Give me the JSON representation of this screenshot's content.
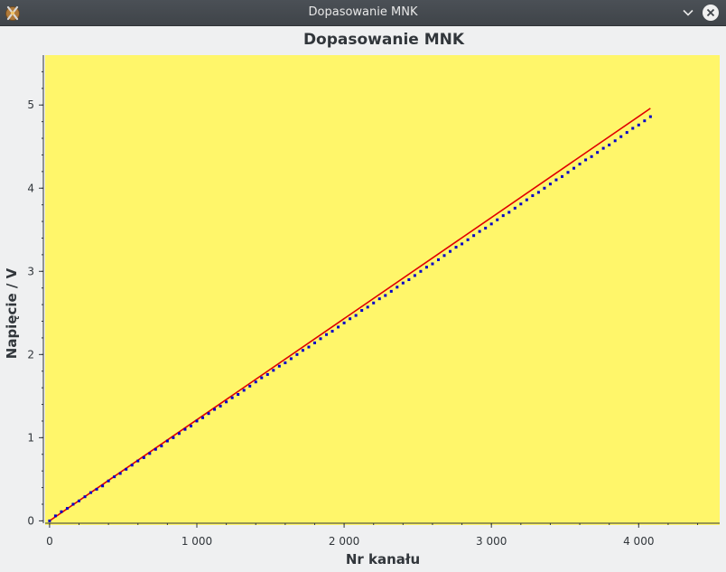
{
  "window": {
    "title": "Dopasowanie MNK"
  },
  "colors": {
    "plot_background": "#fff66a",
    "data_points": "#0000c8",
    "fit_line": "#e00000",
    "axis": "#31363b"
  },
  "icons": {
    "app": "app-icon",
    "minimize": "chevron-down-icon",
    "close": "close-icon"
  },
  "chart_data": {
    "type": "scatter",
    "title": "Dopasowanie MNK",
    "xlabel": "Nr kanału",
    "ylabel": "Napięcie / V",
    "xlim": [
      -30,
      4550
    ],
    "ylim": [
      -0.05,
      5.6
    ],
    "x_ticks": [
      0,
      1000,
      2000,
      3000,
      4000
    ],
    "x_tick_labels": [
      "0",
      "1 000",
      "2 000",
      "3 000",
      "4 000"
    ],
    "y_ticks": [
      0,
      1,
      2,
      3,
      4,
      5
    ],
    "y_tick_labels": [
      "0",
      "1",
      "2",
      "3",
      "4",
      "5"
    ],
    "grid": false,
    "series": [
      {
        "kind": "points",
        "x": [
          0,
          40,
          80,
          120,
          160,
          200,
          240,
          280,
          320,
          360,
          400,
          440,
          480,
          520,
          560,
          600,
          640,
          680,
          720,
          760,
          800,
          840,
          880,
          920,
          960,
          1000,
          1040,
          1080,
          1120,
          1160,
          1200,
          1240,
          1280,
          1320,
          1360,
          1400,
          1440,
          1480,
          1520,
          1560,
          1600,
          1640,
          1680,
          1720,
          1760,
          1800,
          1840,
          1880,
          1920,
          1960,
          2000,
          2040,
          2080,
          2120,
          2160,
          2200,
          2240,
          2280,
          2320,
          2360,
          2400,
          2440,
          2480,
          2520,
          2560,
          2600,
          2640,
          2680,
          2720,
          2760,
          2800,
          2840,
          2880,
          2920,
          2960,
          3000,
          3040,
          3080,
          3120,
          3160,
          3200,
          3240,
          3280,
          3320,
          3360,
          3400,
          3440,
          3480,
          3520,
          3560,
          3600,
          3640,
          3680,
          3720,
          3760,
          3800,
          3840,
          3880,
          3920,
          3960,
          4000,
          4040,
          4080
        ],
        "y": [
          0.0,
          0.06,
          0.11,
          0.15,
          0.2,
          0.24,
          0.29,
          0.34,
          0.38,
          0.42,
          0.48,
          0.53,
          0.57,
          0.62,
          0.67,
          0.72,
          0.76,
          0.81,
          0.86,
          0.9,
          0.96,
          1.0,
          1.05,
          1.1,
          1.14,
          1.2,
          1.24,
          1.29,
          1.34,
          1.38,
          1.43,
          1.48,
          1.52,
          1.57,
          1.62,
          1.67,
          1.72,
          1.76,
          1.81,
          1.86,
          1.9,
          1.95,
          2.0,
          2.05,
          2.09,
          2.14,
          2.19,
          2.24,
          2.28,
          2.33,
          2.38,
          2.43,
          2.47,
          2.53,
          2.57,
          2.62,
          2.67,
          2.71,
          2.76,
          2.81,
          2.86,
          2.9,
          2.95,
          3.0,
          3.05,
          3.09,
          3.14,
          3.19,
          3.24,
          3.29,
          3.33,
          3.38,
          3.43,
          3.48,
          3.52,
          3.57,
          3.62,
          3.67,
          3.71,
          3.76,
          3.81,
          3.86,
          3.91,
          3.95,
          4.0,
          4.05,
          4.1,
          4.14,
          4.19,
          4.24,
          4.29,
          4.34,
          4.38,
          4.43,
          4.48,
          4.52,
          4.57,
          4.62,
          4.67,
          4.72,
          4.76,
          4.81,
          4.86
        ]
      },
      {
        "kind": "fit_line",
        "x": [
          0,
          4080
        ],
        "y": [
          0.0,
          4.96
        ]
      }
    ]
  }
}
